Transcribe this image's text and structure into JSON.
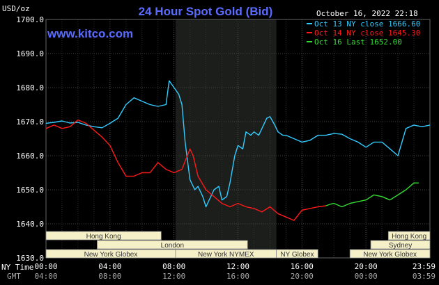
{
  "chart_data": {
    "type": "line",
    "title": "24 Hour Spot Gold (Bid)",
    "website": "www.kitco.com",
    "timestamp": "October 16, 2022 22:18",
    "ylabel": "USD/oz",
    "ylim": [
      1630,
      1700
    ],
    "yticks": [
      "1700.0",
      "1690.0",
      "1680.0",
      "1670.0",
      "1660.0",
      "1650.0",
      "1640.0",
      "1630.0"
    ],
    "xlim": [
      0,
      24
    ],
    "xticks_ny_label": "NY Time",
    "xticks_gmt_label": "GMT",
    "xticks_ny": [
      "00:00",
      "04:00",
      "08:00",
      "12:00",
      "16:00",
      "20:00",
      "23:59"
    ],
    "xticks_gmt": [
      "04:00",
      "08:00",
      "12:00",
      "16:00",
      "20:00",
      "00:00",
      "03:59"
    ],
    "grid": true,
    "legend_position": "top-right",
    "highlight_x_range": [
      8.1,
      14.4
    ],
    "series": [
      {
        "name": "Oct 13 NY close 1666.60",
        "color": "#33ccff",
        "x": [
          0,
          0.5,
          1,
          1.5,
          2,
          2.5,
          3,
          3.5,
          4,
          4.5,
          5,
          5.5,
          6,
          6.5,
          7,
          7.5,
          7.7,
          8,
          8.3,
          8.5,
          8.7,
          9,
          9.3,
          9.5,
          9.8,
          10,
          10.3,
          10.5,
          10.8,
          11,
          11.3,
          11.5,
          11.8,
          12,
          12.3,
          12.5,
          12.8,
          13,
          13.3,
          13.5,
          13.8,
          14,
          14.3,
          14.5,
          14.8,
          15,
          15.5,
          16,
          16.5,
          17,
          17.5,
          18,
          18.5,
          19,
          19.5,
          20,
          20.5,
          21,
          21.5,
          22,
          22.5,
          23,
          23.5,
          24
        ],
        "y": [
          1669.5,
          1669.8,
          1670.2,
          1669.6,
          1669.8,
          1669.0,
          1668.5,
          1668.2,
          1669.5,
          1671,
          1675,
          1677,
          1676,
          1675,
          1674.5,
          1675,
          1682,
          1680,
          1678,
          1675,
          1664,
          1653,
          1650,
          1651,
          1648,
          1645,
          1648,
          1650,
          1651,
          1647,
          1648,
          1652,
          1660,
          1663,
          1662,
          1667,
          1666,
          1667,
          1666,
          1668,
          1671,
          1671.5,
          1669,
          1667,
          1666,
          1666,
          1665,
          1664,
          1664.5,
          1666,
          1666,
          1666.5,
          1666.3,
          1665,
          1664,
          1662.5,
          1664,
          1664,
          1662,
          1660,
          1668,
          1669,
          1668.5,
          1669
        ]
      },
      {
        "name": "Oct 14 NY close 1645.30",
        "color": "#ff1a1a",
        "x": [
          0,
          0.5,
          1,
          1.5,
          2,
          2.5,
          3,
          3.5,
          4,
          4.5,
          5,
          5.5,
          6,
          6.5,
          7,
          7.5,
          8,
          8.5,
          9,
          9.2,
          9.5,
          10,
          10.5,
          11,
          11.5,
          12,
          12.5,
          13,
          13.5,
          14,
          14.5,
          15,
          15.5,
          16,
          16.5,
          17,
          17.5
        ],
        "y": [
          1668,
          1669,
          1668,
          1668.5,
          1670.5,
          1669.5,
          1667.5,
          1665.5,
          1663,
          1658,
          1654,
          1654,
          1655,
          1655,
          1658,
          1656,
          1655,
          1656,
          1662,
          1660,
          1654,
          1650,
          1648,
          1646,
          1645,
          1646,
          1645,
          1644.5,
          1643.5,
          1645,
          1643,
          1642,
          1641,
          1644,
          1644.5,
          1645,
          1645.3
        ]
      },
      {
        "name": "Oct 16 Last 1652.00",
        "color": "#33dd33",
        "x": [
          17.5,
          17.8,
          18,
          18.5,
          19,
          19.5,
          20,
          20.5,
          21,
          21.5,
          22,
          22.5,
          23,
          23.3
        ],
        "y": [
          1645.3,
          1645.8,
          1646,
          1645,
          1646,
          1646.5,
          1647,
          1648.5,
          1648,
          1647,
          1648.5,
          1650,
          1652,
          1652
        ]
      }
    ],
    "sessions": [
      {
        "label": "Hong Kong",
        "row": 0,
        "segments": [
          [
            0,
            7.2
          ]
        ]
      },
      {
        "label": "Hong Kong",
        "row": 0,
        "segments": [
          [
            21.4,
            24
          ]
        ]
      },
      {
        "label": "London",
        "row": 1,
        "segments": [
          [
            3.2,
            12.6
          ]
        ]
      },
      {
        "label": "Sydney",
        "row": 1,
        "segments": [
          [
            20.3,
            24
          ]
        ]
      },
      {
        "label": "New York Globex",
        "row": 2,
        "segments": [
          [
            0,
            8.1
          ]
        ]
      },
      {
        "label": "New York NYMEX",
        "row": 2,
        "segments": [
          [
            8.1,
            14.4
          ]
        ]
      },
      {
        "label": "NY Globex",
        "row": 2,
        "segments": [
          [
            14.4,
            17
          ]
        ]
      },
      {
        "label": "New York Globex",
        "row": 2,
        "segments": [
          [
            19,
            24
          ]
        ]
      }
    ]
  }
}
